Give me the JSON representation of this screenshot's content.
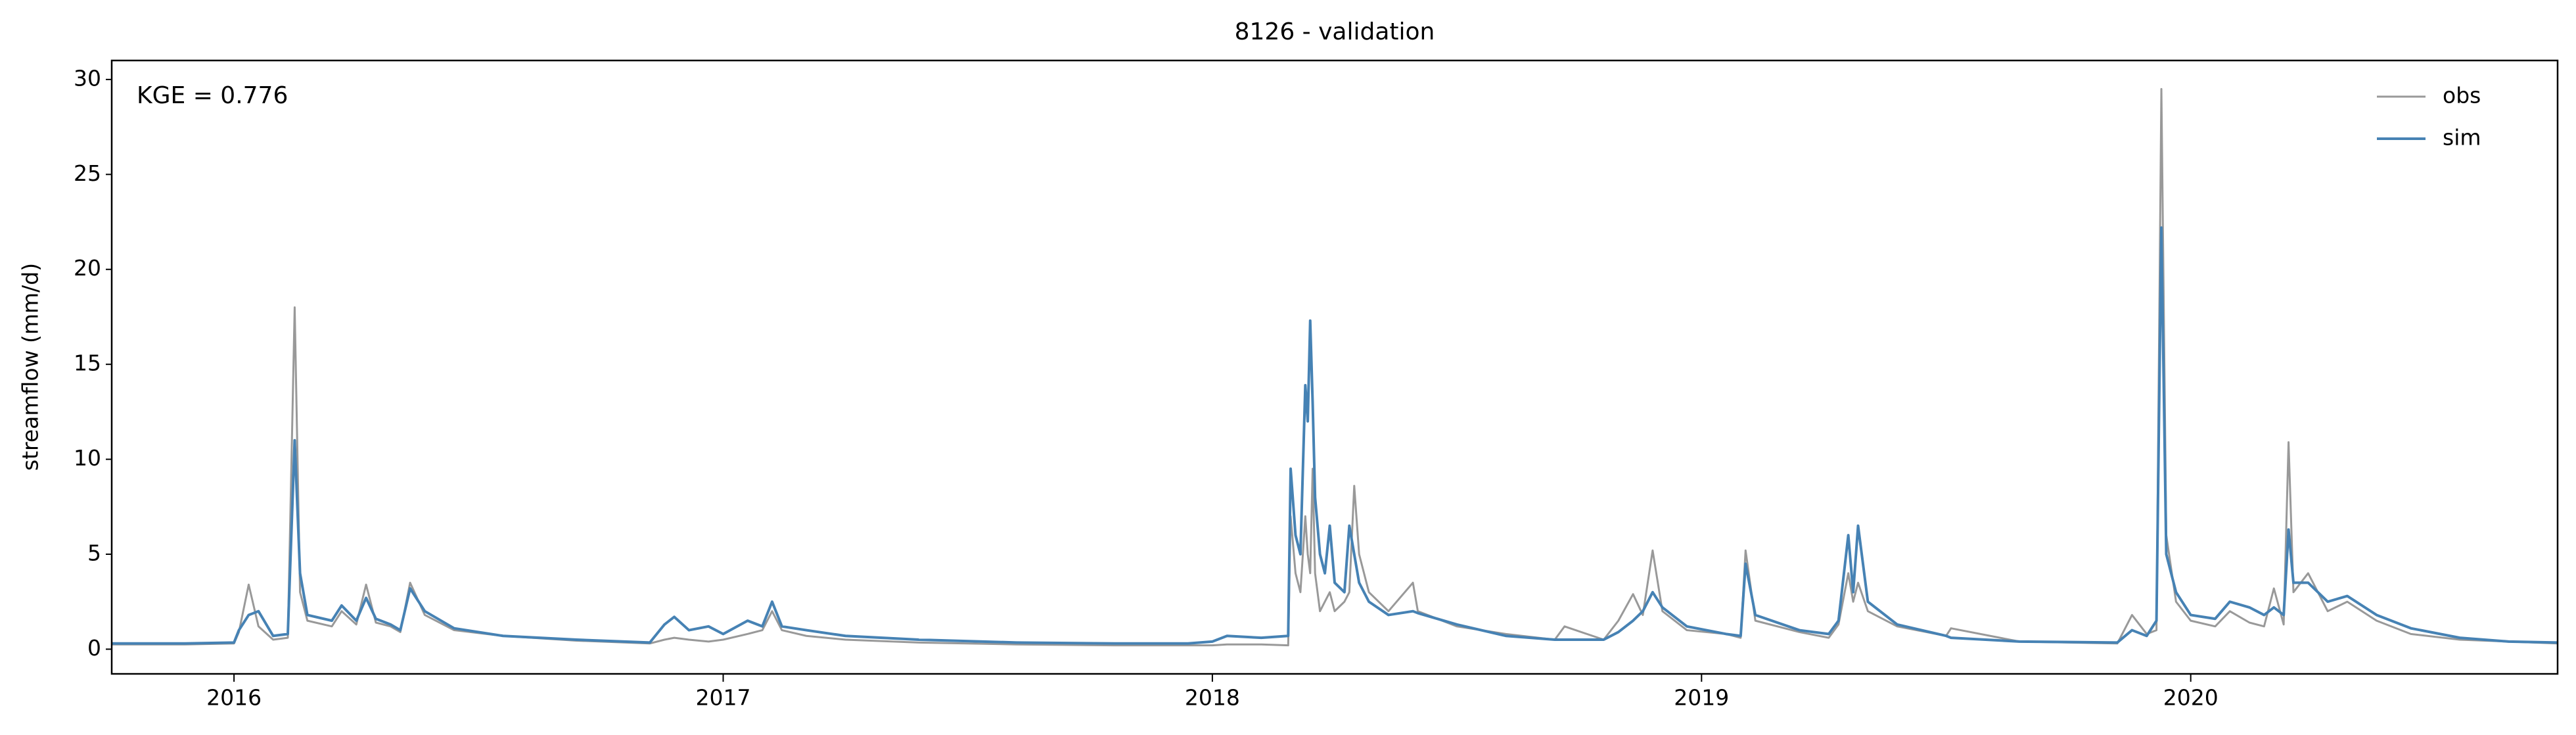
{
  "chart_data": {
    "type": "line",
    "title": "8126 - validation",
    "y_label": "streamflow (mm/d)",
    "annotation": "KGE = 0.776",
    "xlim": [
      2015.75,
      2020.75
    ],
    "xticks": [
      2016,
      2017,
      2018,
      2019,
      2020
    ],
    "ylim": [
      -1.3,
      31.0
    ],
    "yticks": [
      0,
      5,
      10,
      15,
      20,
      25,
      30
    ],
    "legend": "upper right",
    "grid": false,
    "x": [
      2015.75,
      2015.9,
      2016.0,
      2016.01,
      2016.03,
      2016.05,
      2016.08,
      2016.11,
      2016.124,
      2016.135,
      2016.15,
      2016.2,
      2016.22,
      2016.25,
      2016.27,
      2016.29,
      2016.32,
      2016.34,
      2016.36,
      2016.39,
      2016.45,
      2016.55,
      2016.7,
      2016.85,
      2016.88,
      2016.9,
      2016.93,
      2016.97,
      2017.0,
      2017.05,
      2017.08,
      2017.1,
      2017.12,
      2017.17,
      2017.25,
      2017.4,
      2017.6,
      2017.8,
      2017.95,
      2018.0,
      2018.03,
      2018.1,
      2018.155,
      2018.16,
      2018.17,
      2018.18,
      2018.19,
      2018.195,
      2018.2,
      2018.205,
      2018.21,
      2018.22,
      2018.23,
      2018.24,
      2018.25,
      2018.27,
      2018.28,
      2018.29,
      2018.3,
      2018.32,
      2018.36,
      2018.41,
      2018.42,
      2018.5,
      2018.6,
      2018.7,
      2018.72,
      2018.8,
      2018.83,
      2018.86,
      2018.88,
      2018.9,
      2018.92,
      2018.97,
      2019.05,
      2019.08,
      2019.09,
      2019.11,
      2019.2,
      2019.26,
      2019.28,
      2019.3,
      2019.31,
      2019.32,
      2019.34,
      2019.4,
      2019.5,
      2019.51,
      2019.65,
      2019.85,
      2019.88,
      2019.91,
      2019.93,
      2019.94,
      2019.95,
      2019.97,
      2020.0,
      2020.05,
      2020.08,
      2020.12,
      2020.15,
      2020.17,
      2020.19,
      2020.2,
      2020.21,
      2020.24,
      2020.28,
      2020.32,
      2020.38,
      2020.45,
      2020.55,
      2020.65,
      2020.75
    ],
    "series": [
      {
        "name": "obs",
        "color": "#999999",
        "values": [
          0.25,
          0.25,
          0.3,
          0.9,
          3.4,
          1.2,
          0.5,
          0.6,
          18.0,
          3.0,
          1.5,
          1.2,
          2.0,
          1.3,
          3.4,
          1.4,
          1.2,
          0.9,
          3.5,
          1.8,
          1.0,
          0.7,
          0.45,
          0.3,
          0.5,
          0.6,
          0.5,
          0.4,
          0.5,
          0.8,
          1.0,
          2.0,
          1.0,
          0.7,
          0.5,
          0.35,
          0.25,
          0.2,
          0.2,
          0.2,
          0.25,
          0.25,
          0.2,
          7.0,
          4.0,
          3.0,
          7.0,
          5.0,
          4.0,
          9.5,
          4.0,
          2.0,
          2.5,
          3.0,
          2.0,
          2.5,
          3.0,
          8.6,
          5.0,
          3.0,
          2.0,
          3.5,
          2.0,
          1.2,
          0.8,
          0.5,
          1.2,
          0.5,
          1.5,
          2.9,
          1.8,
          5.2,
          2.0,
          1.0,
          0.8,
          0.6,
          5.2,
          1.5,
          0.9,
          0.6,
          1.3,
          4.0,
          2.5,
          3.5,
          2.0,
          1.2,
          0.7,
          1.1,
          0.4,
          0.3,
          1.8,
          0.8,
          1.0,
          29.5,
          6.0,
          2.5,
          1.5,
          1.2,
          2.0,
          1.4,
          1.2,
          3.2,
          1.3,
          10.9,
          3.0,
          4.0,
          2.0,
          2.5,
          1.5,
          0.8,
          0.5,
          0.4,
          0.3
        ]
      },
      {
        "name": "sim",
        "color": "#4682b4",
        "values": [
          0.3,
          0.3,
          0.35,
          1.0,
          1.8,
          2.0,
          0.7,
          0.8,
          11.0,
          4.0,
          1.8,
          1.5,
          2.3,
          1.5,
          2.7,
          1.6,
          1.3,
          1.0,
          3.2,
          2.0,
          1.1,
          0.7,
          0.5,
          0.35,
          1.3,
          1.7,
          1.0,
          1.2,
          0.8,
          1.5,
          1.2,
          2.5,
          1.2,
          1.0,
          0.7,
          0.5,
          0.35,
          0.3,
          0.3,
          0.4,
          0.7,
          0.6,
          0.7,
          9.5,
          6.0,
          5.0,
          13.9,
          12.0,
          17.3,
          13.0,
          8.0,
          5.0,
          4.0,
          6.5,
          3.5,
          3.0,
          6.5,
          5.0,
          3.5,
          2.5,
          1.8,
          2.0,
          1.9,
          1.3,
          0.7,
          0.5,
          0.5,
          0.5,
          0.9,
          1.5,
          2.0,
          3.0,
          2.2,
          1.2,
          0.8,
          0.7,
          4.5,
          1.8,
          1.0,
          0.8,
          1.5,
          6.0,
          3.0,
          6.5,
          2.5,
          1.3,
          0.7,
          0.6,
          0.4,
          0.35,
          1.0,
          0.7,
          1.5,
          22.2,
          5.0,
          3.0,
          1.8,
          1.6,
          2.5,
          2.2,
          1.8,
          2.2,
          1.8,
          6.3,
          3.5,
          3.5,
          2.5,
          2.8,
          1.8,
          1.1,
          0.6,
          0.4,
          0.35
        ]
      }
    ]
  }
}
